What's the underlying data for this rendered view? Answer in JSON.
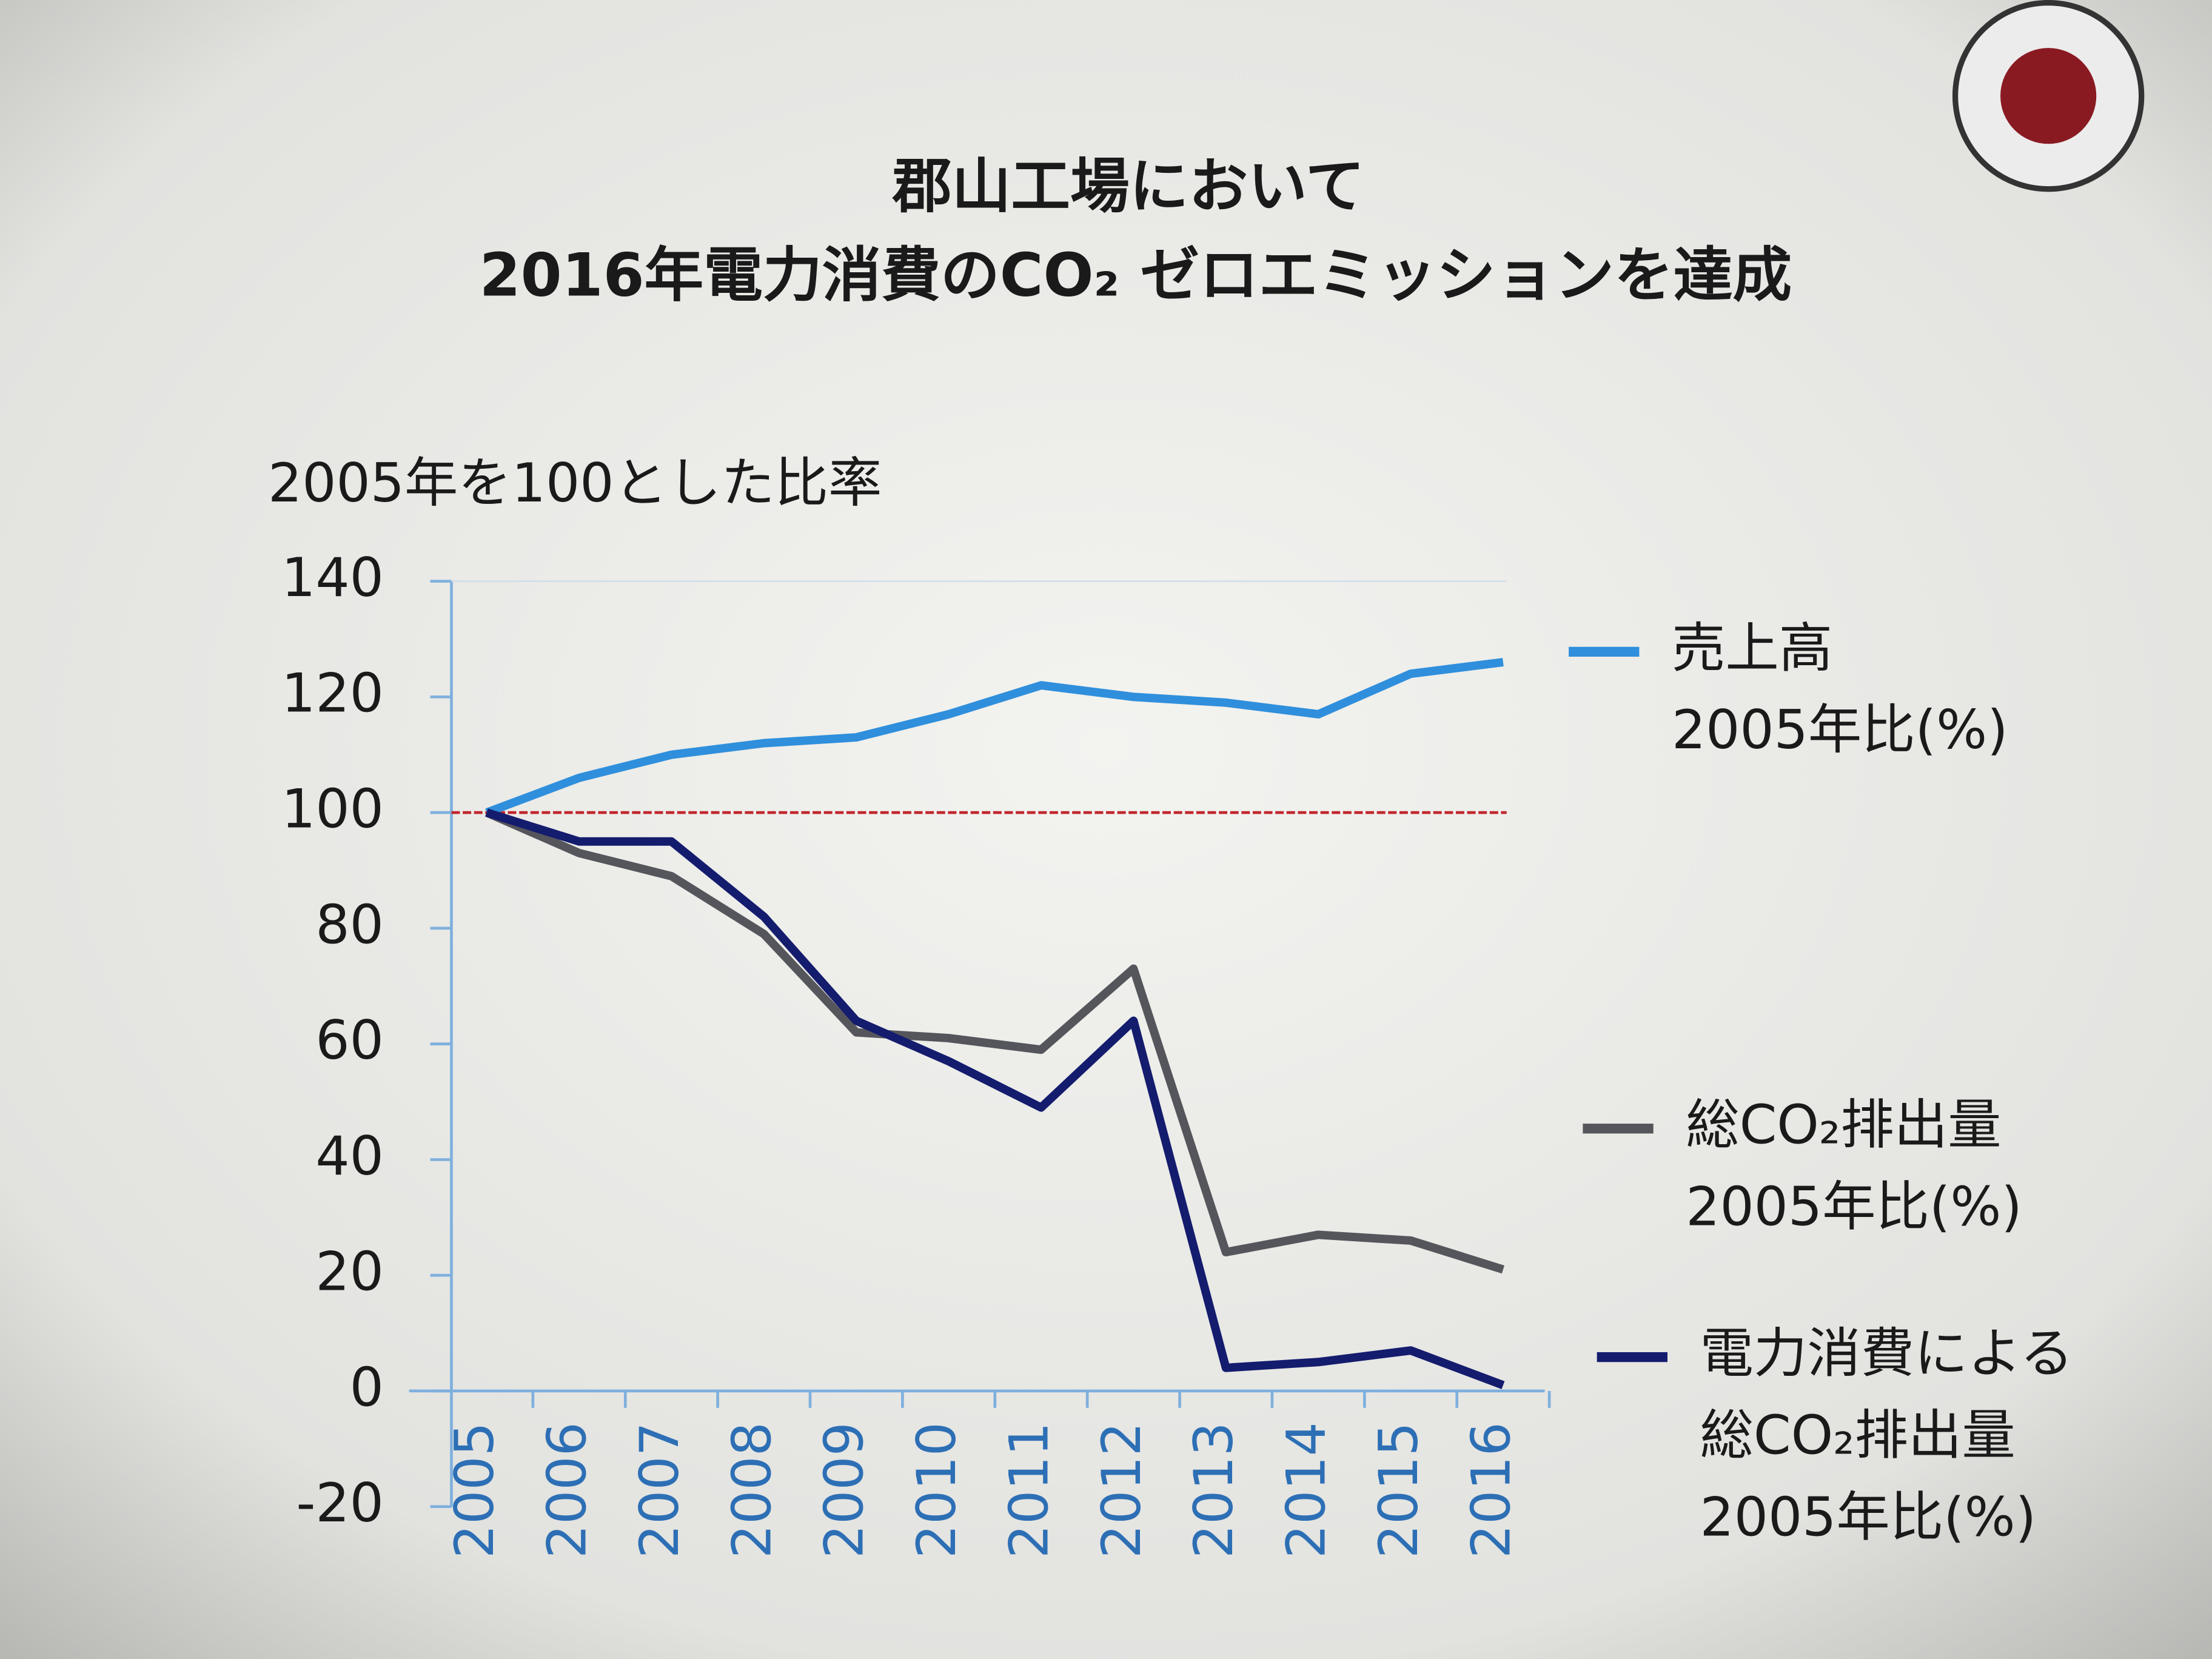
{
  "chart_data": {
    "type": "line",
    "title": [
      "郡山工場において",
      "2016年電力消費のCO₂ ゼロエミッションを達成"
    ],
    "y_label": "2005年を100とした比率",
    "categories": [
      "2005",
      "2006",
      "2007",
      "2008",
      "2009",
      "2010",
      "2011",
      "2012",
      "2013",
      "2014",
      "2015",
      "2016"
    ],
    "series": [
      {
        "name": [
          "売上高",
          "2005年比(%)"
        ],
        "color": "#2f8fdc",
        "values": [
          100,
          106,
          110,
          112,
          113,
          117,
          122,
          120,
          119,
          117,
          124,
          126
        ]
      },
      {
        "name": [
          "総CO₂排出量",
          "2005年比(%)"
        ],
        "color": "#55555c",
        "values": [
          100,
          93,
          89,
          79,
          62,
          61,
          59,
          73,
          24,
          27,
          26,
          21
        ]
      },
      {
        "name": [
          "電力消費による",
          "総CO₂排出量",
          "2005年比(%)"
        ],
        "color": "#141c6e",
        "values": [
          100,
          95,
          95,
          82,
          64,
          57,
          49,
          64,
          4,
          5,
          7,
          1
        ]
      }
    ],
    "reference_line": {
      "value": 100,
      "color": "#c0262c"
    },
    "ylim": [
      -20,
      140
    ],
    "yticks": [
      -20,
      0,
      20,
      40,
      60,
      80,
      100,
      120,
      140
    ]
  }
}
